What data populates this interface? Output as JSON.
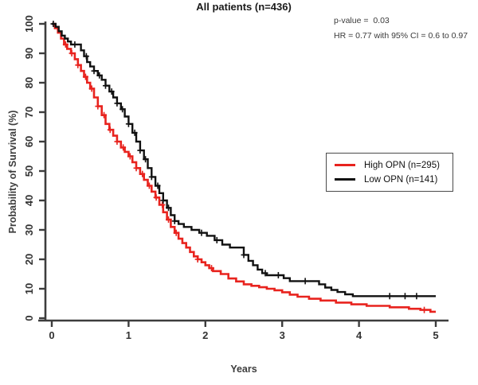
{
  "page": {
    "title": "All patients (n=436)"
  },
  "annotations": {
    "p_value": "p-value =  0.03",
    "hr": "HR = 0.77 with 95% CI = 0.6 to 0.97"
  },
  "legend": {
    "items": [
      {
        "label": "High OPN (n=295)",
        "color": "#e8231e"
      },
      {
        "label": "Low OPN (n=141)",
        "color": "#111111"
      }
    ]
  },
  "chart_data": {
    "type": "line",
    "subtype": "kaplan-meier-step",
    "title": "All patients (n=436)",
    "xlabel": "Years",
    "ylabel": "Probability of Survival (%)",
    "xlim": [
      0,
      5
    ],
    "ylim": [
      0,
      100
    ],
    "x_ticks": [
      0,
      1,
      2,
      3,
      4,
      5
    ],
    "y_ticks": [
      0,
      10,
      20,
      30,
      40,
      50,
      60,
      70,
      80,
      90,
      100
    ],
    "grid": false,
    "legend_position": "right-middle",
    "axis_color": "#3d3d3d",
    "series": [
      {
        "name": "High OPN (n=295)",
        "color": "#e8231e",
        "steps": [
          [
            0,
            100
          ],
          [
            0.04,
            98.5
          ],
          [
            0.08,
            97
          ],
          [
            0.12,
            95
          ],
          [
            0.16,
            93
          ],
          [
            0.2,
            91.5
          ],
          [
            0.25,
            90
          ],
          [
            0.3,
            88
          ],
          [
            0.34,
            86
          ],
          [
            0.38,
            84
          ],
          [
            0.42,
            82
          ],
          [
            0.46,
            80
          ],
          [
            0.5,
            78
          ],
          [
            0.55,
            75
          ],
          [
            0.6,
            72
          ],
          [
            0.65,
            69
          ],
          [
            0.7,
            66
          ],
          [
            0.75,
            64
          ],
          [
            0.8,
            62
          ],
          [
            0.85,
            60
          ],
          [
            0.9,
            58
          ],
          [
            0.95,
            56.5
          ],
          [
            1.0,
            55
          ],
          [
            1.05,
            53
          ],
          [
            1.1,
            51
          ],
          [
            1.15,
            49
          ],
          [
            1.2,
            47
          ],
          [
            1.25,
            45
          ],
          [
            1.3,
            43
          ],
          [
            1.35,
            41
          ],
          [
            1.4,
            38.5
          ],
          [
            1.45,
            36
          ],
          [
            1.5,
            33.5
          ],
          [
            1.55,
            31
          ],
          [
            1.6,
            29
          ],
          [
            1.65,
            27
          ],
          [
            1.7,
            25.5
          ],
          [
            1.75,
            24
          ],
          [
            1.8,
            22.5
          ],
          [
            1.85,
            21
          ],
          [
            1.9,
            20
          ],
          [
            1.95,
            19
          ],
          [
            2.0,
            18
          ],
          [
            2.05,
            17
          ],
          [
            2.1,
            16
          ],
          [
            2.2,
            15
          ],
          [
            2.3,
            13.5
          ],
          [
            2.4,
            12.5
          ],
          [
            2.5,
            11.5
          ],
          [
            2.6,
            11
          ],
          [
            2.7,
            10.5
          ],
          [
            2.8,
            10
          ],
          [
            2.9,
            9.5
          ],
          [
            3.0,
            8.8
          ],
          [
            3.1,
            8
          ],
          [
            3.2,
            7.3
          ],
          [
            3.35,
            6.6
          ],
          [
            3.5,
            6
          ],
          [
            3.7,
            5.3
          ],
          [
            3.9,
            4.7
          ],
          [
            4.1,
            4.2
          ],
          [
            4.4,
            3.7
          ],
          [
            4.65,
            3.2
          ],
          [
            4.8,
            2.8
          ],
          [
            4.93,
            2.2
          ],
          [
            5.0,
            2.2
          ]
        ],
        "censor_times": [
          0.18,
          0.26,
          0.34,
          0.44,
          0.52,
          0.6,
          0.68,
          0.76,
          0.85,
          0.93,
          1.02,
          1.1,
          1.18,
          1.27,
          1.36,
          1.44,
          1.52,
          1.62,
          1.9,
          2.08,
          4.85
        ]
      },
      {
        "name": "Low OPN (n=141)",
        "color": "#111111",
        "steps": [
          [
            0,
            100
          ],
          [
            0.05,
            99
          ],
          [
            0.09,
            97.5
          ],
          [
            0.13,
            96
          ],
          [
            0.17,
            95
          ],
          [
            0.21,
            94
          ],
          [
            0.25,
            93
          ],
          [
            0.34,
            93
          ],
          [
            0.38,
            91
          ],
          [
            0.42,
            89
          ],
          [
            0.46,
            87
          ],
          [
            0.5,
            85.5
          ],
          [
            0.55,
            84
          ],
          [
            0.6,
            82.5
          ],
          [
            0.65,
            81
          ],
          [
            0.7,
            79
          ],
          [
            0.75,
            77
          ],
          [
            0.8,
            75
          ],
          [
            0.85,
            73
          ],
          [
            0.9,
            71
          ],
          [
            0.95,
            68.5
          ],
          [
            1.0,
            66
          ],
          [
            1.05,
            63
          ],
          [
            1.1,
            60
          ],
          [
            1.15,
            57
          ],
          [
            1.2,
            54
          ],
          [
            1.25,
            51
          ],
          [
            1.3,
            48
          ],
          [
            1.35,
            45
          ],
          [
            1.4,
            42.5
          ],
          [
            1.45,
            40
          ],
          [
            1.5,
            37.5
          ],
          [
            1.55,
            35
          ],
          [
            1.6,
            33
          ],
          [
            1.65,
            32
          ],
          [
            1.72,
            31
          ],
          [
            1.82,
            30
          ],
          [
            1.92,
            29
          ],
          [
            2.02,
            28
          ],
          [
            2.12,
            26.5
          ],
          [
            2.22,
            25
          ],
          [
            2.32,
            24
          ],
          [
            2.5,
            21.5
          ],
          [
            2.56,
            19.5
          ],
          [
            2.62,
            18
          ],
          [
            2.68,
            16.5
          ],
          [
            2.74,
            15.3
          ],
          [
            2.8,
            14.6
          ],
          [
            3.02,
            13.6
          ],
          [
            3.1,
            12.6
          ],
          [
            3.48,
            11.5
          ],
          [
            3.56,
            10.4
          ],
          [
            3.64,
            9.6
          ],
          [
            3.72,
            8.9
          ],
          [
            3.82,
            8.1
          ],
          [
            3.92,
            7.5
          ],
          [
            5.0,
            7.5
          ]
        ],
        "censor_times": [
          0.02,
          0.3,
          0.45,
          0.55,
          0.62,
          0.7,
          0.78,
          0.85,
          0.92,
          1.0,
          1.08,
          1.15,
          1.22,
          1.3,
          1.38,
          1.45,
          1.52,
          1.6,
          1.95,
          2.15,
          2.5,
          2.78,
          2.95,
          3.3,
          4.4,
          4.6,
          4.75
        ]
      }
    ]
  }
}
